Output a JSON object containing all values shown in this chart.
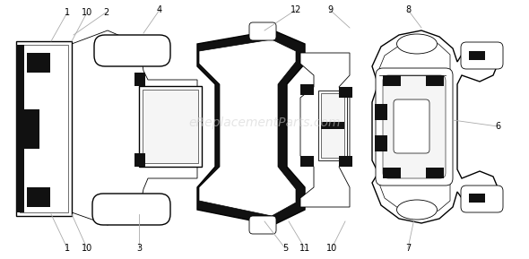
{
  "bg_color": "#ffffff",
  "line_color": "#000000",
  "dark_fill": "#111111",
  "light_fill": "#f5f5f5",
  "watermark": "eReplacementParts.com",
  "watermark_color": "#d0d0d0"
}
